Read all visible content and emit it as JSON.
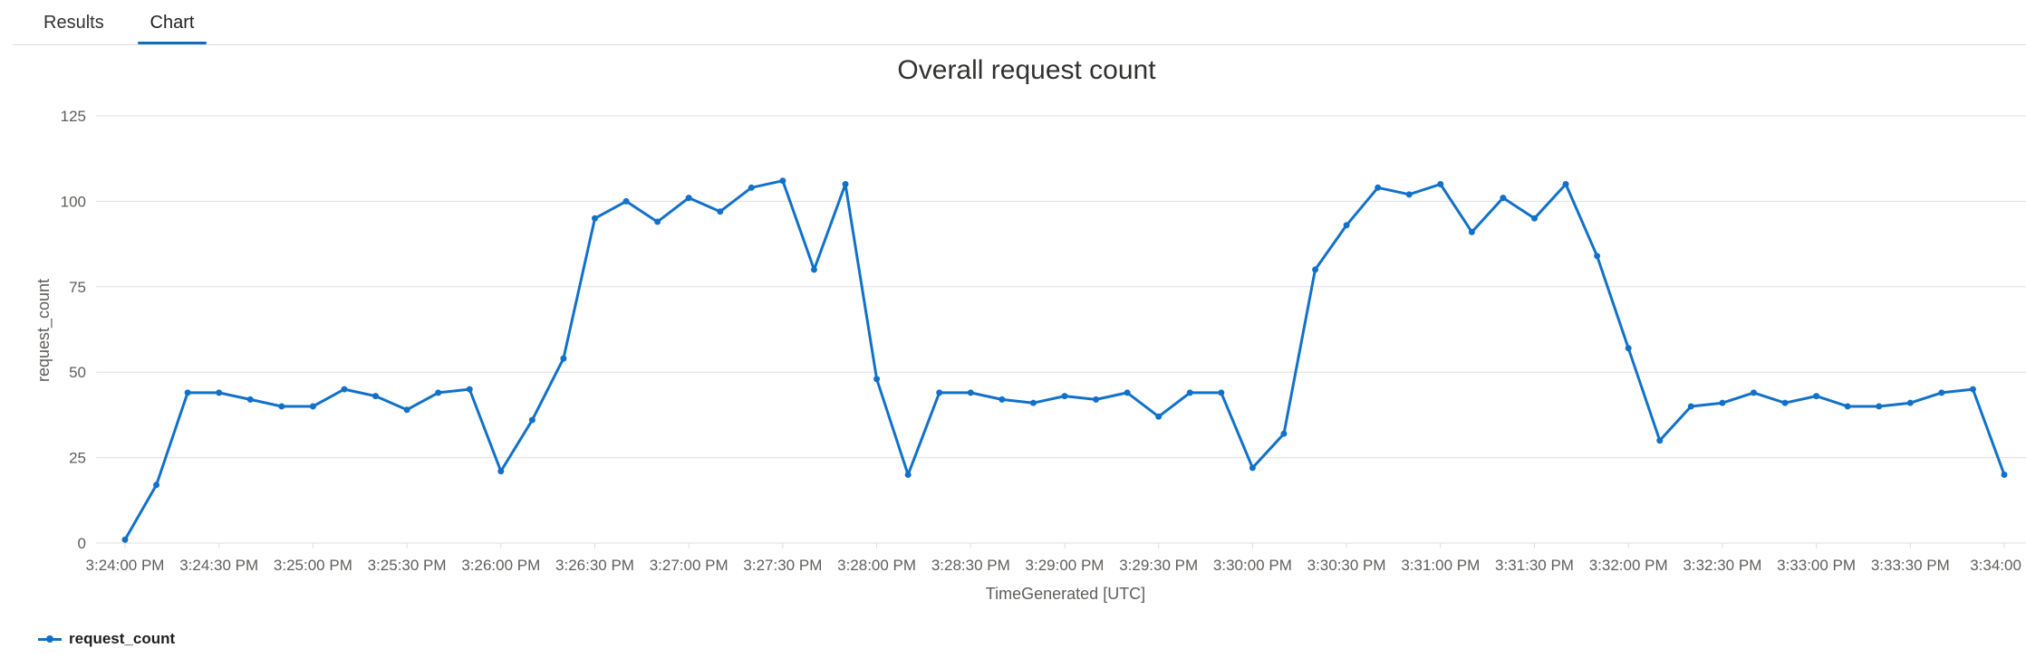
{
  "tabs": [
    {
      "label": "Results"
    },
    {
      "label": "Chart"
    }
  ],
  "colors": {
    "series": "#1171c9",
    "tab_underline": "#0f6cbd",
    "grid": "#e1dfdd",
    "axis_text": "#605e5c"
  },
  "chart_data": {
    "type": "line",
    "title": "Overall request count",
    "xlabel": "TimeGenerated [UTC]",
    "ylabel": "request_count",
    "ylim": [
      0,
      125
    ],
    "yticks": [
      0,
      25,
      50,
      75,
      100,
      125
    ],
    "x_ticks": [
      "3:24:00 PM",
      "3:24:30 PM",
      "3:25:00 PM",
      "3:25:30 PM",
      "3:26:00 PM",
      "3:26:30 PM",
      "3:27:00 PM",
      "3:27:30 PM",
      "3:28:00 PM",
      "3:28:30 PM",
      "3:29:00 PM",
      "3:29:30 PM",
      "3:30:00 PM",
      "3:30:30 PM",
      "3:31:00 PM",
      "3:31:30 PM",
      "3:32:00 PM",
      "3:32:30 PM",
      "3:33:00 PM",
      "3:33:30 PM",
      "3:34:00 ..."
    ],
    "x_interval_seconds": 10,
    "grid": true,
    "legend_position": "bottom-left",
    "series": [
      {
        "name": "request_count",
        "values": [
          1,
          17,
          44,
          44,
          42,
          40,
          40,
          45,
          43,
          39,
          44,
          45,
          21,
          36,
          54,
          95,
          100,
          94,
          101,
          97,
          104,
          106,
          80,
          105,
          48,
          20,
          44,
          44,
          42,
          41,
          43,
          42,
          44,
          37,
          44,
          44,
          22,
          32,
          80,
          93,
          104,
          102,
          105,
          91,
          101,
          95,
          105,
          84,
          57,
          30,
          40,
          41,
          44,
          41,
          43,
          40,
          40,
          41,
          44,
          45,
          20
        ]
      }
    ]
  }
}
